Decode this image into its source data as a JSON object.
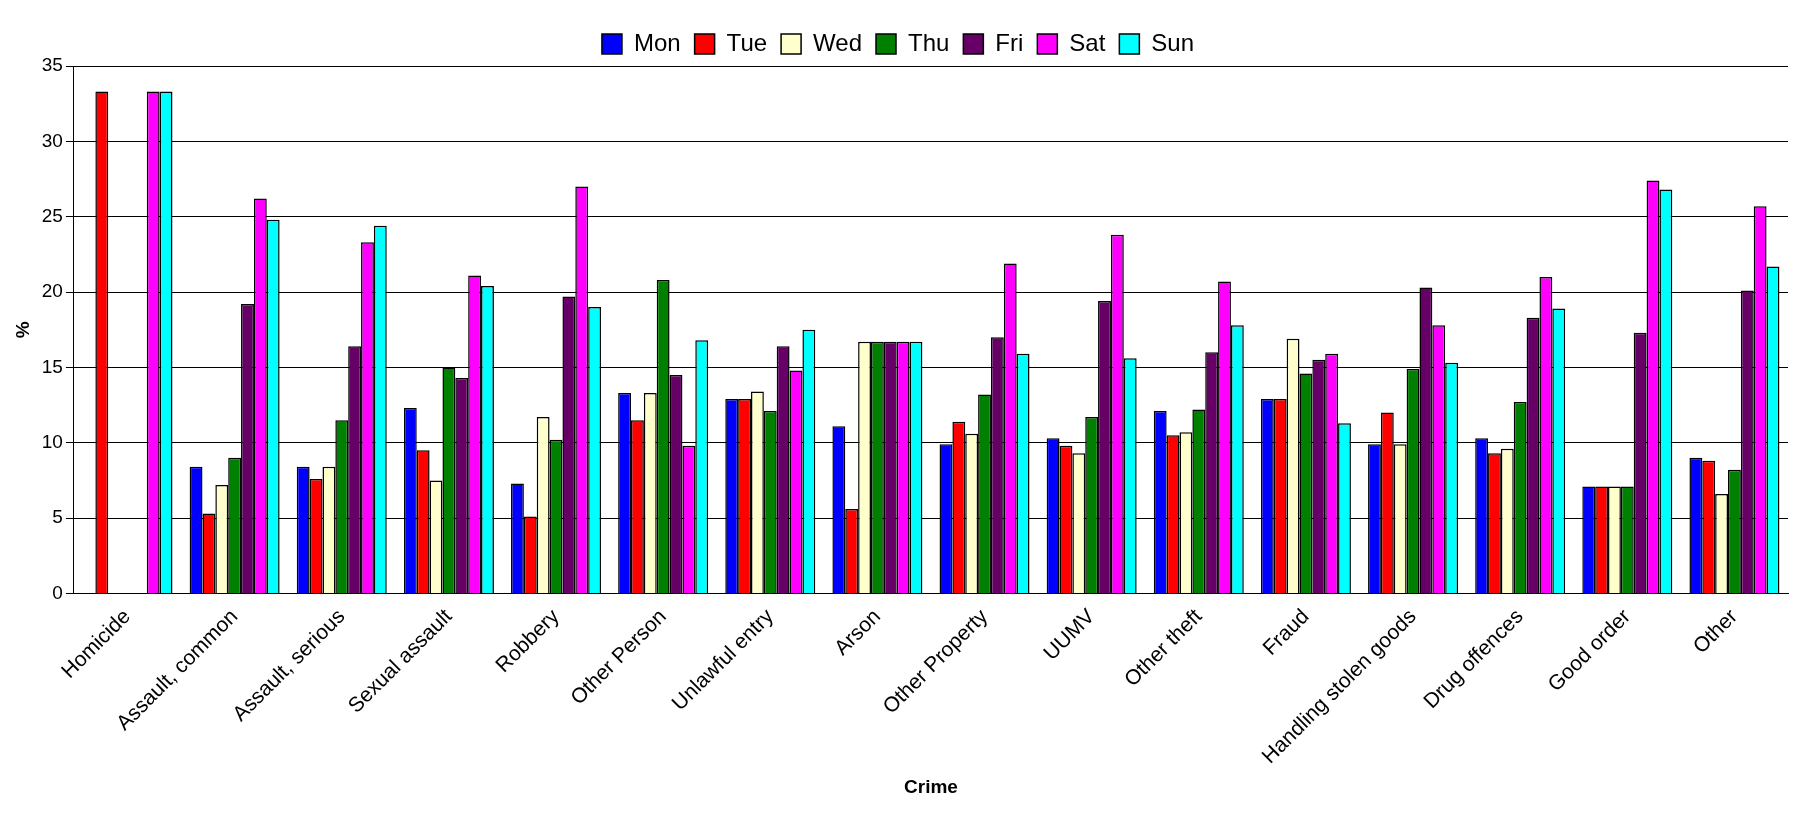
{
  "chart_data": {
    "type": "bar",
    "xlabel": "Crime",
    "ylabel": "%",
    "categories": [
      "Homicide",
      "Assault, common",
      "Assault, serious",
      "Sexual assault",
      "Robbery",
      "Other Person",
      "Unlawful entry",
      "Arson",
      "Other Property",
      "UUMV",
      "Other theft",
      "Fraud",
      "Handling stolen goods",
      "Drug offences",
      "Good order",
      "Other"
    ],
    "series": [
      {
        "name": "Mon",
        "color": "#0000ff",
        "values": [
          0,
          8.4,
          8.4,
          12.3,
          7.3,
          13.3,
          12.9,
          11.1,
          9.9,
          10.3,
          12.1,
          12.9,
          9.9,
          10.3,
          7.1,
          9.0
        ]
      },
      {
        "name": "Tue",
        "color": "#ff0000",
        "values": [
          33.3,
          5.3,
          7.6,
          9.5,
          5.1,
          11.5,
          12.9,
          5.6,
          11.4,
          9.8,
          10.5,
          12.9,
          12.0,
          9.3,
          7.1,
          8.8
        ]
      },
      {
        "name": "Wed",
        "color": "#ffffcc",
        "values": [
          0,
          7.2,
          8.4,
          7.5,
          11.7,
          13.3,
          13.4,
          16.7,
          10.6,
          9.3,
          10.7,
          16.9,
          9.9,
          9.6,
          7.1,
          6.6
        ]
      },
      {
        "name": "Thu",
        "color": "#008000",
        "values": [
          0,
          9.0,
          11.5,
          15.0,
          10.2,
          20.8,
          12.1,
          16.7,
          13.2,
          11.7,
          12.2,
          14.6,
          14.9,
          12.7,
          7.1,
          8.2
        ]
      },
      {
        "name": "Fri",
        "color": "#660066",
        "values": [
          0,
          19.2,
          16.4,
          14.3,
          19.7,
          14.5,
          16.4,
          16.7,
          17.0,
          19.4,
          16.0,
          15.5,
          20.3,
          18.3,
          17.3,
          20.1
        ]
      },
      {
        "name": "Sat",
        "color": "#ff00ff",
        "values": [
          33.3,
          26.2,
          23.3,
          21.1,
          27.0,
          9.8,
          14.8,
          16.7,
          21.9,
          23.8,
          20.7,
          15.9,
          17.8,
          21.0,
          27.4,
          25.7
        ]
      },
      {
        "name": "Sun",
        "color": "#00ffff",
        "values": [
          33.3,
          24.8,
          24.4,
          20.4,
          19.0,
          16.8,
          17.5,
          16.7,
          15.9,
          15.6,
          17.8,
          11.3,
          15.3,
          18.9,
          26.8,
          21.7
        ]
      }
    ],
    "ylim": [
      0,
      35
    ],
    "yticks": [
      0,
      5,
      10,
      15,
      20,
      25,
      30,
      35
    ],
    "grid": "y",
    "legend": "top"
  }
}
